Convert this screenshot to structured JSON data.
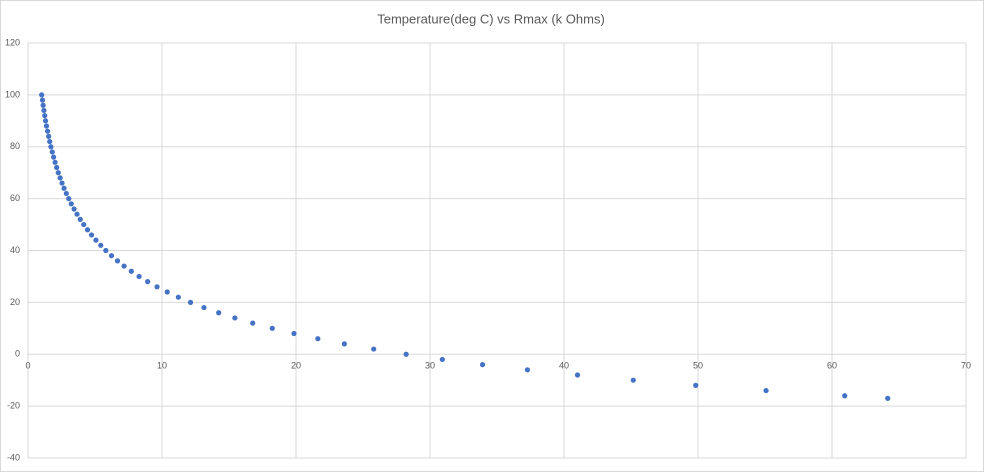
{
  "chart_data": {
    "type": "scatter",
    "title": "Temperature(deg C) vs Rmax (k Ohms)",
    "x": [
      1.02,
      1.08,
      1.13,
      1.19,
      1.25,
      1.31,
      1.38,
      1.46,
      1.54,
      1.62,
      1.71,
      1.81,
      1.91,
      2.02,
      2.14,
      2.26,
      2.4,
      2.54,
      2.69,
      2.86,
      3.04,
      3.23,
      3.44,
      3.66,
      3.9,
      4.16,
      4.44,
      4.74,
      5.07,
      5.43,
      5.81,
      6.23,
      6.68,
      7.17,
      7.71,
      8.29,
      8.93,
      9.63,
      10.39,
      11.22,
      12.13,
      13.13,
      14.23,
      15.44,
      16.77,
      18.23,
      19.85,
      21.63,
      23.61,
      25.8,
      28.22,
      30.92,
      33.92,
      37.27,
      41.01,
      45.17,
      49.83,
      55.08,
      60.95,
      64.16
    ],
    "values": [
      100,
      98,
      96,
      94,
      92,
      90,
      88,
      86,
      84,
      82,
      80,
      78,
      76,
      74,
      72,
      70,
      68,
      66,
      64,
      62,
      60,
      58,
      56,
      54,
      52,
      50,
      48,
      46,
      44,
      42,
      40,
      38,
      36,
      34,
      32,
      30,
      28,
      26,
      24,
      22,
      20,
      18,
      16,
      14,
      12,
      10,
      8,
      6,
      4,
      2,
      0,
      -2,
      -4,
      -6,
      -8,
      -10,
      -12,
      -14,
      -16,
      -17
    ],
    "color": "#4472c4",
    "xlim": [
      0,
      70
    ],
    "xticks": [
      0,
      10,
      20,
      30,
      40,
      50,
      60,
      70
    ],
    "ylim": [
      -40,
      120
    ],
    "yticks": [
      -40,
      -20,
      0,
      20,
      40,
      60,
      80,
      100,
      120
    ],
    "grid": true
  }
}
